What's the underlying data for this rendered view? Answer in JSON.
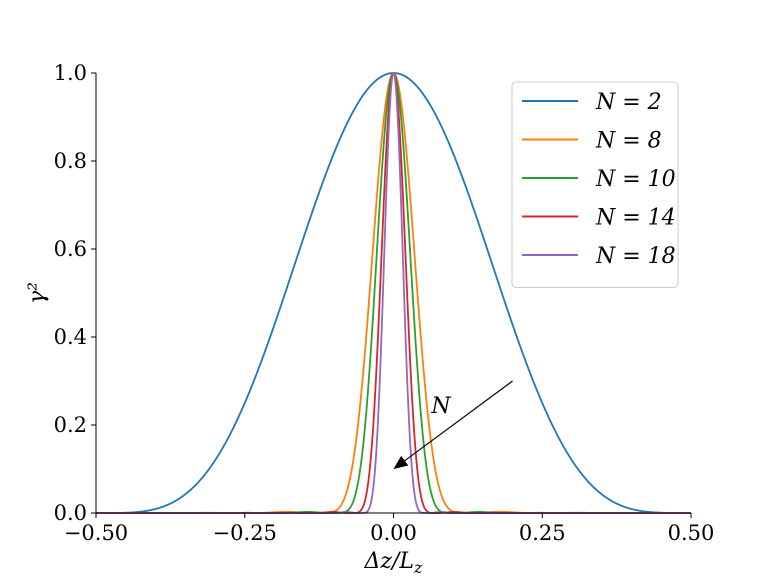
{
  "chart_data": {
    "type": "line",
    "title": "",
    "xlabel": "Δz/L_z",
    "ylabel": "γ²",
    "xlim": [
      -0.5,
      0.5
    ],
    "ylim": [
      0.0,
      1.0
    ],
    "xticks": [
      -0.5,
      -0.25,
      0.0,
      0.25,
      0.5
    ],
    "xtick_labels": [
      "−0.50",
      "−0.25",
      "0.00",
      "0.25",
      "0.50"
    ],
    "yticks": [
      0.0,
      0.2,
      0.4,
      0.6,
      0.8,
      1.0
    ],
    "ytick_labels": [
      "0.0",
      "0.2",
      "0.4",
      "0.6",
      "0.8",
      "1.0"
    ],
    "grid": false,
    "legend_position": "top-right",
    "series": [
      {
        "name": "N = 2",
        "N": 2,
        "color": "#1f77b4"
      },
      {
        "name": "N = 8",
        "N": 8,
        "color": "#ff7f0e"
      },
      {
        "name": "N = 10",
        "N": 10,
        "color": "#2ca02c"
      },
      {
        "name": "N = 14",
        "N": 14,
        "color": "#d62728"
      },
      {
        "name": "N = 18",
        "N": 18,
        "color": "#9467bd"
      }
    ],
    "annotation": {
      "text": "N",
      "arrow_from": [
        0.2,
        0.3
      ],
      "arrow_to": [
        0.0,
        0.1
      ]
    }
  }
}
